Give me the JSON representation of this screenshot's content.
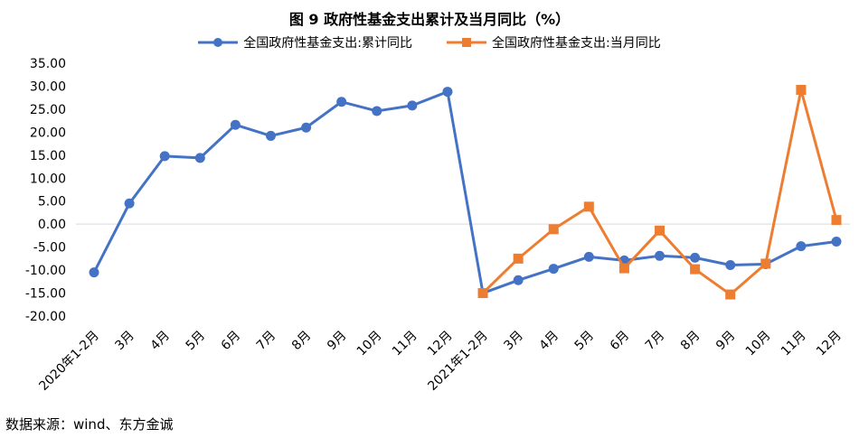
{
  "chart_data": {
    "type": "line",
    "title": "图 9  政府性基金支出累计及当月同比（%）",
    "categories": [
      "2020年1-2月",
      "3月",
      "4月",
      "5月",
      "6月",
      "7月",
      "8月",
      "9月",
      "10月",
      "11月",
      "12月",
      "2021年1-2月",
      "3月",
      "4月",
      "5月",
      "6月",
      "7月",
      "8月",
      "9月",
      "10月",
      "11月",
      "12月"
    ],
    "ylim": [
      -20,
      35
    ],
    "yticks": [
      "35.00",
      "30.00",
      "25.00",
      "20.00",
      "15.00",
      "10.00",
      "5.00",
      "0.00",
      "-5.00",
      "-10.00",
      "-15.00",
      "-20.00"
    ],
    "grid": false,
    "legend_position": "top",
    "series": [
      {
        "name": "全国政府性基金支出:累计同比",
        "color": "#4472C4",
        "marker": "circle",
        "values": [
          -10.5,
          4.5,
          14.8,
          14.4,
          21.6,
          19.2,
          21.0,
          26.6,
          24.6,
          25.8,
          28.8,
          -15.0,
          -12.2,
          -9.7,
          -7.1,
          -7.9,
          -6.9,
          -7.3,
          -8.9,
          -8.7,
          -4.8,
          -3.8
        ]
      },
      {
        "name": "全国政府性基金支出:当月同比",
        "color": "#ED7D31",
        "marker": "square",
        "values": [
          null,
          null,
          null,
          null,
          null,
          null,
          null,
          null,
          null,
          null,
          null,
          -15.0,
          -7.5,
          -1.1,
          3.8,
          -9.6,
          -1.4,
          -9.8,
          -15.3,
          -8.6,
          29.2,
          0.9
        ]
      }
    ]
  },
  "source_note": "数据来源：wind、东方金诚"
}
